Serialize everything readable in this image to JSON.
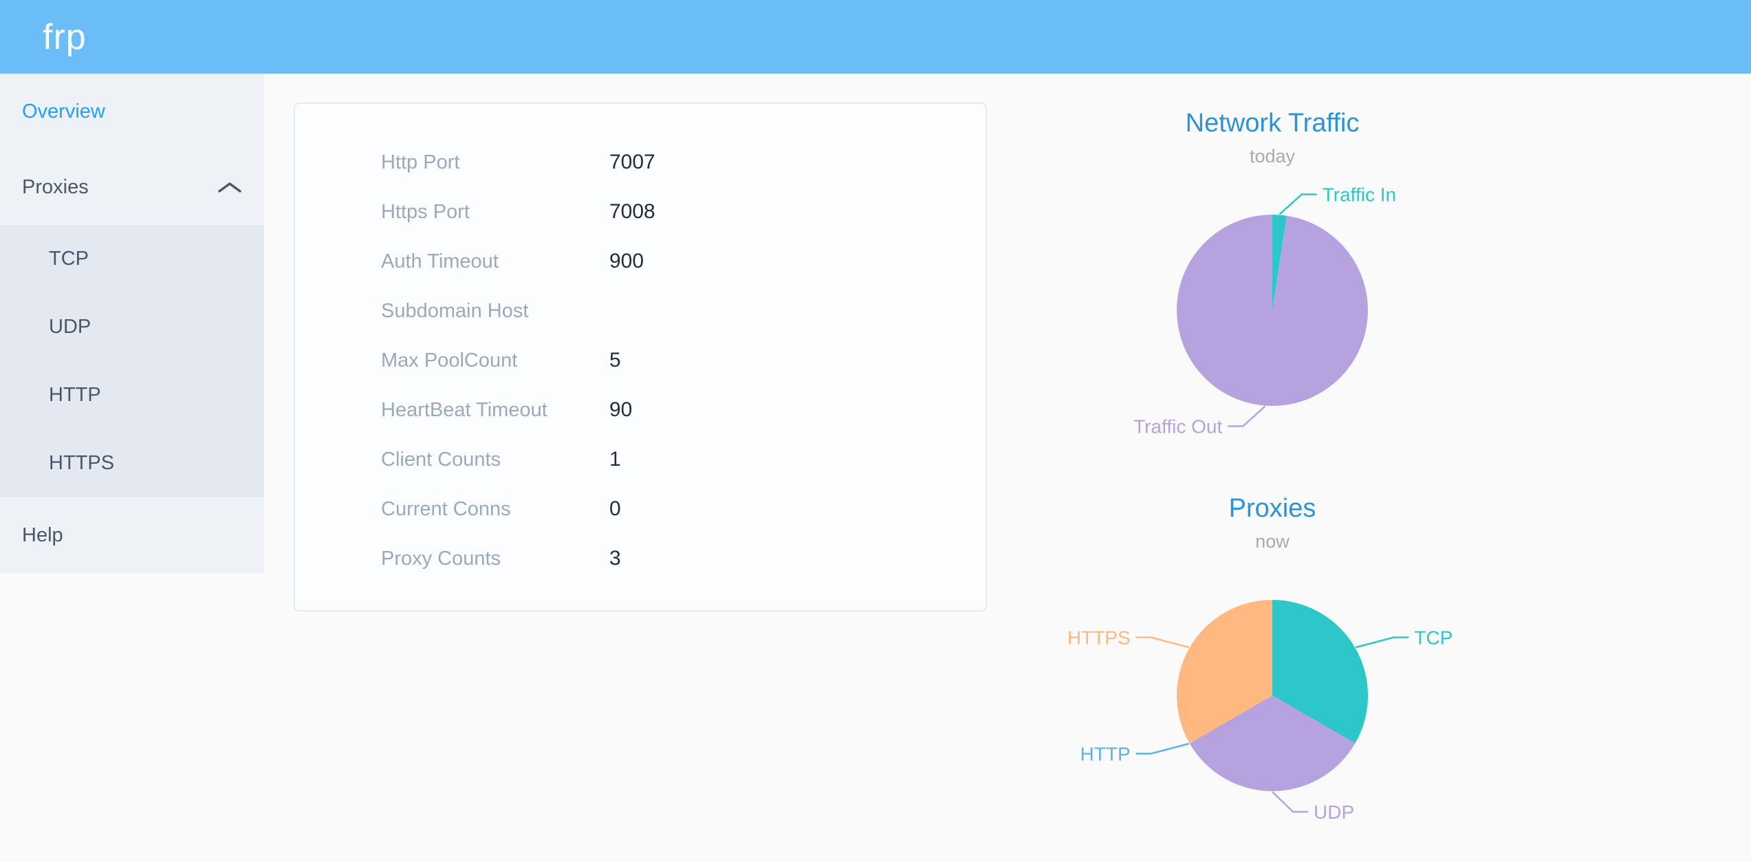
{
  "colors": {
    "header_bg": "#6bbdf8",
    "sidebar_bg": "#eef1f6",
    "submenu_bg": "#e4e8f1",
    "menu_text": "#48576a",
    "menu_active_text": "#20a0ff",
    "page_bg": "#fafafa",
    "card_border": "#e4e9f2",
    "field_label_text": "#99a9bf",
    "field_value_text": "#1f2d3d",
    "chart_title": "#2b93db",
    "chart_subtitle": "#aaaaaa",
    "palette_teal": "#2ec7c9",
    "palette_purple": "#b6a2de",
    "palette_blue": "#5ab1ef",
    "palette_orange": "#ffb980"
  },
  "header": {
    "logo": "frp"
  },
  "sidebar": {
    "overview": {
      "label": "Overview"
    },
    "proxies": {
      "label": "Proxies",
      "expanded": true,
      "children": [
        {
          "label": "TCP"
        },
        {
          "label": "UDP"
        },
        {
          "label": "HTTP"
        },
        {
          "label": "HTTPS"
        }
      ]
    },
    "help": {
      "label": "Help"
    }
  },
  "server_info": {
    "fields": [
      {
        "label": "Http Port",
        "value": "7007"
      },
      {
        "label": "Https Port",
        "value": "7008"
      },
      {
        "label": "Auth Timeout",
        "value": "900"
      },
      {
        "label": "Subdomain Host",
        "value": ""
      },
      {
        "label": "Max PoolCount",
        "value": "5"
      },
      {
        "label": "HeartBeat Timeout",
        "value": "90"
      },
      {
        "label": "Client Counts",
        "value": "1"
      },
      {
        "label": "Current Conns",
        "value": "0"
      },
      {
        "label": "Proxy Counts",
        "value": "3"
      }
    ]
  },
  "chart_data": [
    {
      "type": "pie",
      "title": "Network Traffic",
      "subtitle": "today",
      "legend_position": "outside-leader-labels",
      "values_are": "percent-of-total (estimated from slice angles)",
      "series": [
        {
          "name": "Traffic In",
          "value": 2.4,
          "color": "#2ec7c9"
        },
        {
          "name": "Traffic Out",
          "value": 97.6,
          "color": "#b6a2de"
        }
      ]
    },
    {
      "type": "pie",
      "title": "Proxies",
      "subtitle": "now",
      "legend_position": "outside-leader-labels",
      "values_are": "proxy counts per type",
      "series": [
        {
          "name": "TCP",
          "value": 1,
          "color": "#2ec7c9"
        },
        {
          "name": "UDP",
          "value": 1,
          "color": "#b6a2de"
        },
        {
          "name": "HTTP",
          "value": 0,
          "color": "#5ab1ef"
        },
        {
          "name": "HTTPS",
          "value": 1,
          "color": "#ffb980"
        }
      ]
    }
  ]
}
